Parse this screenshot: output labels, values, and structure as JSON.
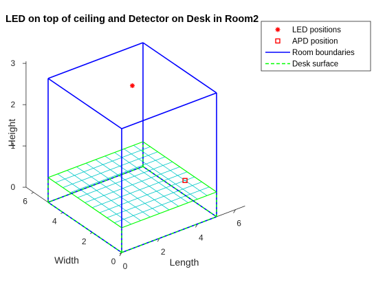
{
  "chart_data": {
    "type": "scatter3d",
    "title": "LED on top of ceiling and Detector on Desk in Room2",
    "xlabel": "Length",
    "ylabel": "Width",
    "zlabel": "Height",
    "xlim": [
      0,
      5
    ],
    "ylim": [
      0,
      5
    ],
    "zlim": [
      0,
      3
    ],
    "xticks": [
      0,
      2,
      4,
      6
    ],
    "yticks": [
      0,
      2,
      4,
      6
    ],
    "zticks": [
      0,
      1,
      2,
      3
    ],
    "desk_height": 0.6,
    "desk_grid_divisions": 10,
    "led_positions": [
      {
        "x": 2.5,
        "y": 2.5,
        "z": 3
      }
    ],
    "apd_position": {
      "x": 4.5,
      "y": 1.5,
      "z": 0.6
    },
    "legend_position": "top-right",
    "legend": [
      {
        "label": "LED positions",
        "marker": "asterisk",
        "color": "#ff0000"
      },
      {
        "label": "APD position",
        "marker": "square",
        "color": "#ff0000"
      },
      {
        "label": "Room boundaries",
        "marker": "line",
        "color": "#0000ff"
      },
      {
        "label": "Desk surface",
        "marker": "dashed-line",
        "color": "#00ff00"
      }
    ],
    "colors": {
      "room": "#0000ff",
      "desk_edge": "#00ff00",
      "desk_grid": "#00c8c8",
      "marker": "#ff0000",
      "axis": "#262626"
    }
  }
}
